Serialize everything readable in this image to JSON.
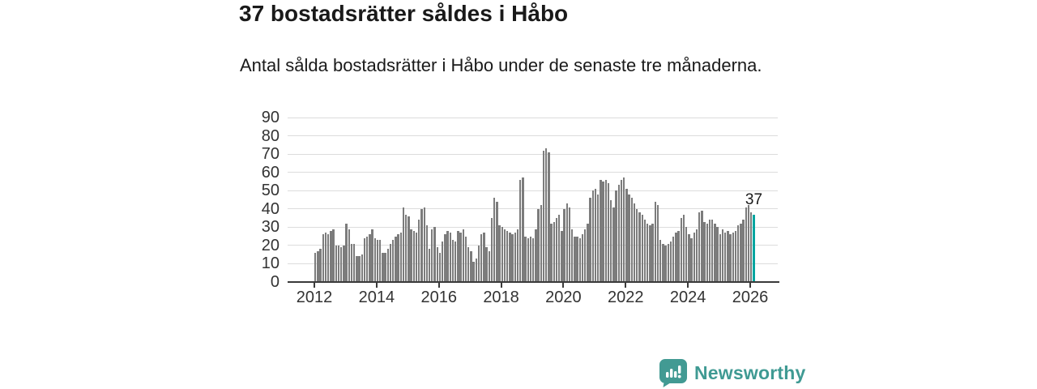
{
  "header": {
    "title": "37 bostadsrätter såldes i Håbo",
    "subtitle": "Antal sålda bostadsrätter i Håbo under de senaste tre månaderna."
  },
  "annotation": {
    "label": "37"
  },
  "branding": {
    "name": "Newsworthy",
    "icon": "newsworthy-speech-bubble-chart-icon"
  },
  "colors": {
    "bar": "#7c7c7c",
    "highlight_bar": "#00a5a0",
    "grid": "#dcdcdc",
    "axis": "#3a3a3a",
    "text": "#1a1a1a",
    "tick_label": "#333333",
    "brand": "#3f9a93"
  },
  "chart_data": {
    "type": "bar",
    "title": "37 bostadsrätter såldes i Håbo",
    "subtitle": "Antal sålda bostadsrätter i Håbo under de senaste tre månaderna.",
    "x_unit": "month",
    "x_start": "2012-01",
    "x_end": "2026-02",
    "x_tick_labels": [
      "2012",
      "2014",
      "2016",
      "2018",
      "2020",
      "2022",
      "2024",
      "2026"
    ],
    "ylim": [
      0,
      90
    ],
    "y_ticks": [
      0,
      10,
      20,
      30,
      40,
      50,
      60,
      70,
      80,
      90
    ],
    "grid": true,
    "legend": "none",
    "series": [
      {
        "name": "Antal sålda bostadsrätter (rullande tre månader)",
        "values": [
          16,
          17,
          18,
          26,
          27,
          26,
          28,
          29,
          20,
          20,
          19,
          20,
          32,
          29,
          21,
          21,
          14,
          14,
          15,
          24,
          25,
          26,
          29,
          24,
          23,
          23,
          16,
          16,
          18,
          21,
          23,
          25,
          26,
          27,
          41,
          37,
          36,
          29,
          28,
          27,
          34,
          40,
          41,
          31,
          18,
          29,
          30,
          19,
          16,
          22,
          26,
          28,
          27,
          23,
          22,
          28,
          27,
          29,
          25,
          19,
          17,
          11,
          13,
          20,
          26,
          27,
          19,
          17,
          35,
          46,
          44,
          31,
          30,
          29,
          28,
          27,
          26,
          27,
          29,
          56,
          57,
          25,
          24,
          25,
          24,
          29,
          40,
          42,
          72,
          73,
          71,
          32,
          33,
          35,
          37,
          28,
          40,
          43,
          41,
          29,
          25,
          25,
          24,
          26,
          29,
          32,
          46,
          50,
          51,
          48,
          56,
          55,
          56,
          54,
          45,
          41,
          50,
          53,
          56,
          57,
          51,
          48,
          46,
          43,
          40,
          38,
          37,
          34,
          32,
          31,
          32,
          44,
          42,
          23,
          21,
          20,
          21,
          22,
          25,
          27,
          28,
          35,
          37,
          30,
          26,
          24,
          27,
          29,
          38,
          39,
          33,
          32,
          34,
          34,
          32,
          30,
          26,
          29,
          27,
          28,
          26,
          27,
          28,
          31,
          32,
          34,
          41,
          42,
          38,
          37
        ]
      }
    ],
    "highlight": {
      "index": 169,
      "value": 37,
      "label": "37"
    }
  }
}
